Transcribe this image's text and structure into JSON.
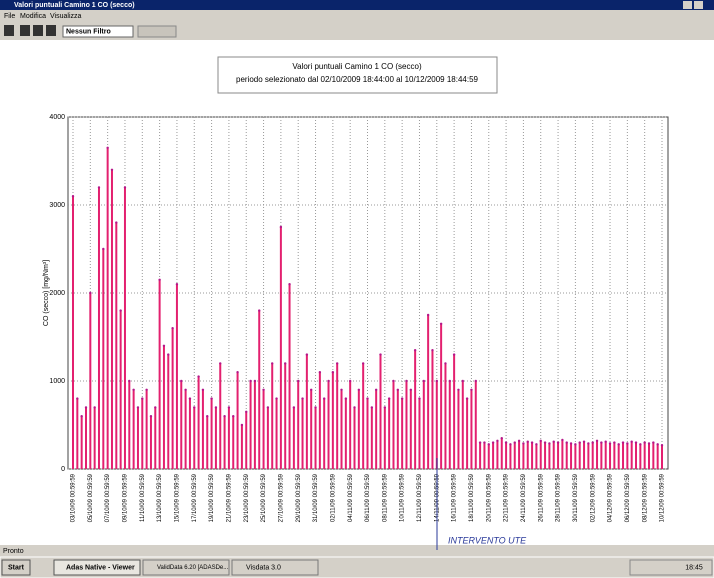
{
  "window": {
    "title": "Valori puntuali Camino 1 CO (secco)",
    "menu": [
      "File",
      "Modifica",
      "Visualizza"
    ],
    "filter": "Nessun Filtro"
  },
  "status": "Pronto",
  "taskbar": {
    "start": "Start",
    "items": [
      "Adas Native - Viewer",
      "ValidData 6.20 [ADASDe...",
      "Visdata 3.0"
    ],
    "clock": "18:45"
  },
  "chart_data": {
    "type": "spike",
    "title": "Valori puntuali Camino 1 CO (secco)",
    "subtitle": "periodo selezionato dal 02/10/2009 18:44:00 al 10/12/2009 18:44:59",
    "y_label": "CO (secco) [mg/Nm³]",
    "annotation": "INTERVENTO UTE",
    "color": "#e3206f",
    "marker_color": "#b5178a",
    "grid": true,
    "ylim": [
      0,
      4000
    ],
    "yticks": [
      0,
      1000,
      2000,
      3000,
      4000
    ],
    "categories": [
      "03/10/09 00:59:59",
      null,
      null,
      null,
      "05/10/09 00:59:59",
      null,
      null,
      null,
      "07/10/09 00:59:59",
      null,
      null,
      null,
      "09/10/09 00:59:59",
      null,
      null,
      null,
      "11/10/09 00:59:59",
      null,
      null,
      null,
      "13/10/09 00:59:59",
      null,
      null,
      null,
      "15/10/09 00:59:59",
      null,
      null,
      null,
      "17/10/09 00:59:59",
      null,
      null,
      null,
      "19/10/09 00:59:59",
      null,
      null,
      null,
      "21/10/09 00:59:59",
      null,
      null,
      null,
      "23/10/09 00:59:59",
      null,
      null,
      null,
      "25/10/09 00:59:59",
      null,
      null,
      null,
      "27/10/09 00:59:59",
      null,
      null,
      null,
      "29/10/09 00:59:59",
      null,
      null,
      null,
      "31/10/09 00:59:59",
      null,
      null,
      null,
      "02/11/09 00:59:59",
      null,
      null,
      null,
      "04/11/09 00:59:59",
      null,
      null,
      null,
      "06/11/09 00:59:59",
      null,
      null,
      null,
      "08/11/09 00:59:59",
      null,
      null,
      null,
      "10/11/09 00:59:59",
      null,
      null,
      null,
      "12/11/09 00:59:59",
      null,
      null,
      null,
      "14/11/09 00:59:59",
      null,
      null,
      null,
      "16/11/09 00:59:59",
      null,
      null,
      null,
      "18/11/09 00:59:59",
      null,
      null,
      null,
      "20/11/09 00:59:59",
      null,
      null,
      null,
      "22/11/09 00:59:59",
      null,
      null,
      null,
      "24/11/09 00:59:59",
      null,
      null,
      null,
      "26/11/09 00:59:59",
      null,
      null,
      null,
      "28/11/09 00:59:59",
      null,
      null,
      null,
      "30/11/09 00:59:59",
      null,
      null,
      null,
      "02/12/09 00:59:59",
      null,
      null,
      null,
      "04/12/09 00:59:59",
      null,
      null,
      null,
      "06/12/09 00:59:59",
      null,
      null,
      null,
      "08/12/09 00:59:59",
      null,
      null,
      null,
      "10/12/09 00:59:59"
    ],
    "values": [
      3100,
      800,
      600,
      700,
      2000,
      700,
      3200,
      2500,
      3650,
      3400,
      2800,
      1800,
      3200,
      1000,
      900,
      700,
      800,
      900,
      600,
      700,
      2150,
      1400,
      1300,
      1600,
      2100,
      1000,
      900,
      800,
      700,
      1050,
      900,
      600,
      800,
      700,
      1200,
      600,
      700,
      600,
      1100,
      500,
      650,
      1000,
      1000,
      1800,
      900,
      700,
      1200,
      800,
      2750,
      1200,
      2100,
      700,
      1000,
      800,
      1300,
      900,
      700,
      1100,
      800,
      1000,
      1100,
      1200,
      900,
      800,
      1000,
      700,
      900,
      1200,
      800,
      700,
      900,
      1300,
      700,
      800,
      1000,
      900,
      800,
      1000,
      900,
      1350,
      800,
      1000,
      1750,
      1350,
      1000,
      1650,
      1200,
      1000,
      1300,
      900,
      1000,
      800,
      900,
      1000,
      300,
      300,
      280,
      300,
      320,
      350,
      300,
      280,
      300,
      320,
      290,
      310,
      300,
      280,
      320,
      300,
      290,
      310,
      300,
      330,
      300,
      290,
      280,
      300,
      310,
      290,
      300,
      320,
      300,
      310,
      290,
      300,
      280,
      300,
      290,
      310,
      300,
      280,
      300,
      290,
      300,
      280,
      270
    ]
  }
}
